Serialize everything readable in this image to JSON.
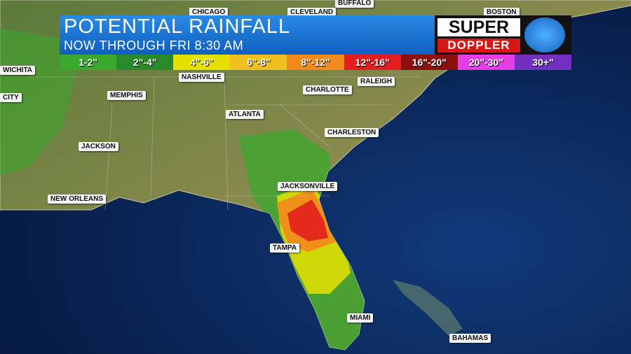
{
  "header": {
    "title": "POTENTIAL RAINFALL",
    "subtitle": "NOW THROUGH FRI 8:30 AM"
  },
  "legend": [
    {
      "label": "1-2\"",
      "color": "#3aa82c"
    },
    {
      "label": "2\"-4\"",
      "color": "#2a8a2a"
    },
    {
      "label": "4\"-6\"",
      "color": "#e6e000"
    },
    {
      "label": "6\"-8\"",
      "color": "#f0c020"
    },
    {
      "label": "8\"-12\"",
      "color": "#f28a1c"
    },
    {
      "label": "12\"-16\"",
      "color": "#e41e1e"
    },
    {
      "label": "16\"-20\"",
      "color": "#8c1010"
    },
    {
      "label": "20\"-30\"",
      "color": "#e63ee6"
    },
    {
      "label": "30+\"",
      "color": "#7330c0"
    }
  ],
  "logo": {
    "line1": "SUPER",
    "line2": "DOPPLER"
  },
  "cities": [
    "CHICAGO",
    "CLEVELAND",
    "BUFFALO",
    "BOSTON",
    "WICHITA",
    "CITY",
    "NASHVILLE",
    "MEMPHIS",
    "CHARLOTTE",
    "RALEIGH",
    "ATLANTA",
    "CHARLESTON",
    "JACKSON",
    "NEW ORLEANS",
    "JACKSONVILLE",
    "TAMPA",
    "MIAMI",
    "BAHAMAS"
  ]
}
